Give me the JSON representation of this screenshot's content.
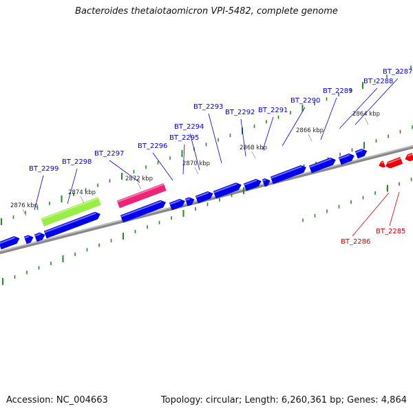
{
  "title": "Bacteroides thetaiotaomicron VPI-5482, complete genome",
  "footer": {
    "accession": "Accession: NC_004663",
    "summary": "Topology: circular; Length: 6,260,361 bp; Genes: 4,864"
  },
  "colors": {
    "forward_gene": "#0000ee",
    "reverse_gene": "#ee0000",
    "forward_label": "#0000cc",
    "reverse_label": "#cc0000",
    "backbone": "#888888",
    "ticks": "#228b22",
    "feature_green": "#99ee44",
    "feature_pink": "#ee2277"
  },
  "scale_labels": [
    "2864 kbp",
    "2866 kbp",
    "2868 kbp",
    "2870 kbp",
    "2872 kbp",
    "2874 kbp",
    "2876 kbp"
  ],
  "forward_gene_labels": [
    "BT_2287",
    "BT_2288",
    "BT_2289",
    "BT_2290",
    "BT_2291",
    "BT_2292",
    "BT_2293",
    "BT_2294",
    "BT_2295",
    "BT_2296",
    "BT_2297",
    "BT_2298",
    "BT_2299"
  ],
  "reverse_gene_labels": [
    "BT_2285",
    "BT_2286"
  ]
}
